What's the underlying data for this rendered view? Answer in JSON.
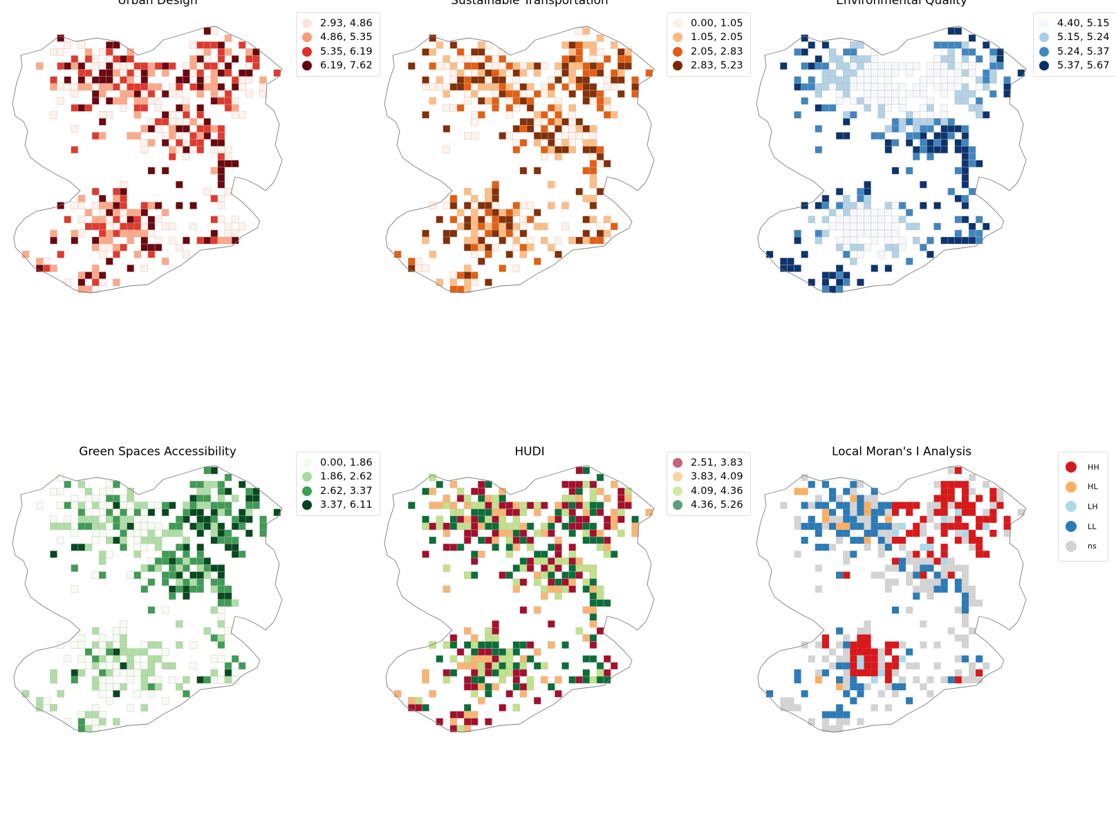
{
  "figure": {
    "panels": [
      {
        "id": "urban-design",
        "title": "Urban Design",
        "legend": [
          {
            "label": "2.93, 4.86",
            "color": "#fee5d9"
          },
          {
            "label": "4.86, 5.35",
            "color": "#fb9a7a"
          },
          {
            "label": "5.35, 6.19",
            "color": "#e32f27"
          },
          {
            "label": "6.19, 7.62",
            "color": "#67000d"
          }
        ],
        "palette": [
          "#fff2ec",
          "#fca98a",
          "#e03a2f",
          "#6b0710"
        ]
      },
      {
        "id": "sustainable-transportation",
        "title": "Sustainable Transportation",
        "legend": [
          {
            "label": "0.00, 1.05",
            "color": "#fff0e4"
          },
          {
            "label": "1.05, 2.05",
            "color": "#fdb97d"
          },
          {
            "label": "2.05, 2.83",
            "color": "#e65c0f"
          },
          {
            "label": "2.83, 5.23",
            "color": "#7f2704"
          }
        ],
        "palette": [
          "#fff3ea",
          "#fdbe86",
          "#e45f12",
          "#843008"
        ]
      },
      {
        "id": "environmental-quality",
        "title": "Environmental Quality",
        "legend": [
          {
            "label": "4.40, 5.15",
            "color": "#f3f7fd"
          },
          {
            "label": "5.15, 5.24",
            "color": "#abcfe5"
          },
          {
            "label": "5.24, 5.37",
            "color": "#3d8ac3"
          },
          {
            "label": "5.37, 5.67",
            "color": "#08306b"
          }
        ],
        "palette": [
          "#f5f9fe",
          "#b1d2e7",
          "#3e86c2",
          "#0b3470"
        ]
      },
      {
        "id": "green-spaces-accessibility",
        "title": "Green Spaces Accessibility",
        "legend": [
          {
            "label": "0.00, 1.86",
            "color": "#f2faf0"
          },
          {
            "label": "1.86, 2.62",
            "color": "#a8dc9f"
          },
          {
            "label": "2.62, 3.37",
            "color": "#39a156"
          },
          {
            "label": "3.37, 6.11",
            "color": "#00441b"
          }
        ],
        "palette": [
          "#f6fcf4",
          "#addea6",
          "#3d9c55",
          "#064a20"
        ]
      },
      {
        "id": "hudi",
        "title": "HUDI",
        "legend": [
          {
            "label": "2.51, 3.83",
            "color": "#c4627b"
          },
          {
            "label": "3.83, 4.09",
            "color": "#fdd3a0"
          },
          {
            "label": "4.09, 4.36",
            "color": "#d3eaa5"
          },
          {
            "label": "4.36, 5.26",
            "color": "#5ba07c"
          }
        ],
        "palette": [
          "#a50f2e",
          "#f8b572",
          "#bfe28b",
          "#0a6e3a"
        ]
      },
      {
        "id": "local-morans-i",
        "title": "Local Moran's I Analysis",
        "legend": [
          {
            "label": "HH",
            "color": "#d7191c"
          },
          {
            "label": "HL",
            "color": "#fdae61"
          },
          {
            "label": "LH",
            "color": "#abd9e9"
          },
          {
            "label": "LL",
            "color": "#2c7bb6"
          },
          {
            "label": "ns",
            "color": "#d3d3d3"
          }
        ],
        "palette": [
          "#d7191c",
          "#fdae61",
          "#abd9e9",
          "#2c7bb6",
          "#d3d3d3"
        ]
      }
    ]
  }
}
